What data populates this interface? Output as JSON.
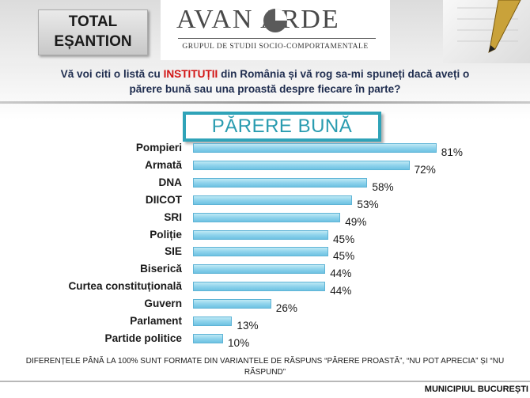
{
  "header": {
    "total_line1": "TOTAL",
    "total_line2": "EȘANTION",
    "logo_name": "AVAN ARDE",
    "logo_tagline": "GRUPUL DE STUDII SOCIO-COMPORTAMENTALE"
  },
  "question": {
    "part1": "Vă voi citi o listă cu ",
    "highlight": "INSTITUȚII",
    "part2": " din România și vă rog sa-mi spuneți dacă aveți o părere bună sau una proastă despre fiecare în parte?"
  },
  "colors": {
    "bar": "#8fd3ec",
    "banner": "#2fa3b8",
    "highlight": "#d21414"
  },
  "chart_data": {
    "type": "bar",
    "orientation": "horizontal",
    "title": "PĂRERE BUNĂ",
    "categories": [
      "Pompieri",
      "Armată",
      "DNA",
      "DIICOT",
      "SRI",
      "Poliție",
      "SIE",
      "Biserică",
      "Curtea constituțională",
      "Guvern",
      "Parlament",
      "Partide politice"
    ],
    "values": [
      81,
      72,
      58,
      53,
      49,
      45,
      45,
      44,
      44,
      26,
      13,
      10
    ],
    "value_suffix": "%",
    "xlim": [
      0,
      100
    ]
  },
  "footnote": "DIFERENȚELE PÂNĂ LA 100% SUNT FORMATE DIN VARIANTELE DE RĂSPUNS “PĂRERE PROASTĂ”, “NU POT APRECIA” ȘI “NU RĂSPUND”",
  "footer": {
    "location": "MUNICIPIUL BUCUREȘTI"
  }
}
